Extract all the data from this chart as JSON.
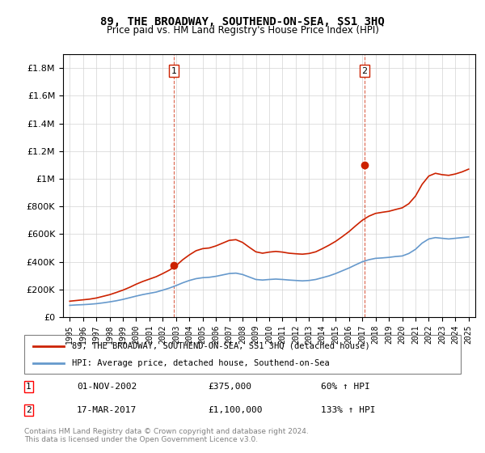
{
  "title": "89, THE BROADWAY, SOUTHEND-ON-SEA, SS1 3HQ",
  "subtitle": "Price paid vs. HM Land Registry's House Price Index (HPI)",
  "legend_entry1": "89, THE BROADWAY, SOUTHEND-ON-SEA, SS1 3HQ (detached house)",
  "legend_entry2": "HPI: Average price, detached house, Southend-on-Sea",
  "annotation1_label": "1",
  "annotation1_date": "01-NOV-2002",
  "annotation1_price": "£375,000",
  "annotation1_hpi": "60% ↑ HPI",
  "annotation2_label": "2",
  "annotation2_date": "17-MAR-2017",
  "annotation2_price": "£1,100,000",
  "annotation2_hpi": "133% ↑ HPI",
  "footnote1": "Contains HM Land Registry data © Crown copyright and database right 2024.",
  "footnote2": "This data is licensed under the Open Government Licence v3.0.",
  "hpi_color": "#6699cc",
  "price_color": "#cc2200",
  "vline_color": "#cc2200",
  "dot_color": "#cc2200",
  "ylim_max": 1900000,
  "ylim_min": 0,
  "x_start_year": 1995,
  "x_end_year": 2025
}
